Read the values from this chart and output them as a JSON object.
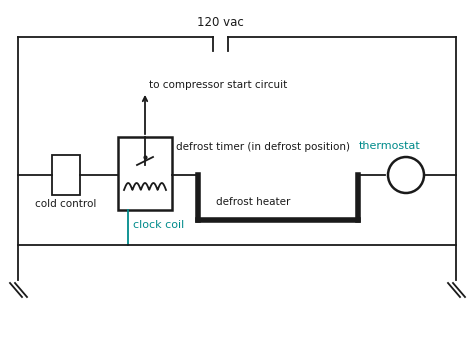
{
  "bg_color": "#ffffff",
  "line_color": "#1a1a1a",
  "teal_color": "#008b8b",
  "thick_lw": 4.0,
  "thin_lw": 1.3,
  "title": "120 vac",
  "label_cold_control": "cold control",
  "label_defrost_timer": "defrost timer (in defrost position)",
  "label_defrost_heater": "defrost heater",
  "label_thermostat": "thermostat",
  "label_clock_coil": "clock coil",
  "label_compressor": "to compressor start circuit",
  "font_size_main": 7.5,
  "font_size_title": 8.5,
  "font_size_teal": 8.0
}
